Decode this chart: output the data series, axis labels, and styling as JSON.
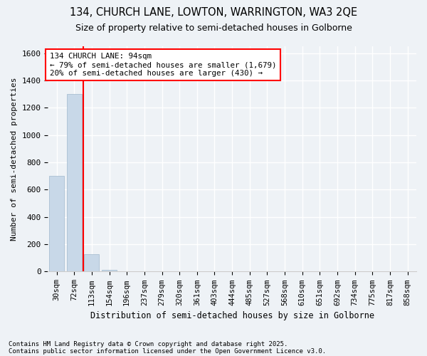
{
  "title1": "134, CHURCH LANE, LOWTON, WARRINGTON, WA3 2QE",
  "title2": "Size of property relative to semi-detached houses in Golborne",
  "xlabel": "Distribution of semi-detached houses by size in Golborne",
  "ylabel": "Number of semi-detached properties",
  "categories": [
    "30sqm",
    "72sqm",
    "113sqm",
    "154sqm",
    "196sqm",
    "237sqm",
    "279sqm",
    "320sqm",
    "361sqm",
    "403sqm",
    "444sqm",
    "485sqm",
    "527sqm",
    "568sqm",
    "610sqm",
    "651sqm",
    "692sqm",
    "734sqm",
    "775sqm",
    "817sqm",
    "858sqm"
  ],
  "values": [
    700,
    1300,
    125,
    15,
    0,
    0,
    0,
    0,
    0,
    0,
    0,
    0,
    0,
    0,
    0,
    0,
    0,
    0,
    0,
    0,
    0
  ],
  "bar_color": "#c8d8e8",
  "bar_edgecolor": "#a0b8cc",
  "redline_x": 1.5,
  "annotation_title": "134 CHURCH LANE: 94sqm",
  "annotation_line1": "← 79% of semi-detached houses are smaller (1,679)",
  "annotation_line2": "20% of semi-detached houses are larger (430) →",
  "ylim": [
    0,
    1650
  ],
  "yticks": [
    0,
    200,
    400,
    600,
    800,
    1000,
    1200,
    1400,
    1600
  ],
  "footnote1": "Contains HM Land Registry data © Crown copyright and database right 2025.",
  "footnote2": "Contains public sector information licensed under the Open Government Licence v3.0.",
  "bg_color": "#eef2f6",
  "grid_color": "#ffffff"
}
